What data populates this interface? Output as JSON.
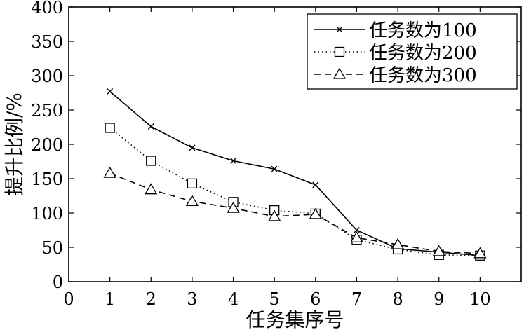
{
  "chart_data": {
    "type": "line",
    "title": "",
    "xlabel": "任务集序号",
    "ylabel": "提升比例/%",
    "xlim": [
      0,
      11
    ],
    "ylim": [
      0,
      400
    ],
    "xticks": [
      0,
      1,
      2,
      3,
      4,
      5,
      6,
      7,
      8,
      9,
      10
    ],
    "yticks": [
      0,
      50,
      100,
      150,
      200,
      250,
      300,
      350,
      400
    ],
    "grid": false,
    "legend_position": "top-right",
    "x": [
      1,
      2,
      3,
      4,
      5,
      6,
      7,
      8,
      9,
      10
    ],
    "series": [
      {
        "name": "任务数为100",
        "marker": "x",
        "line_style": "solid",
        "values": [
          277,
          226,
          195,
          176,
          164,
          141,
          75,
          48,
          43,
          38
        ]
      },
      {
        "name": "任务数为200",
        "marker": "square",
        "line_style": "dotted",
        "values": [
          224,
          176,
          143,
          116,
          104,
          99,
          61,
          47,
          39,
          38
        ]
      },
      {
        "name": "任务数为300",
        "marker": "triangle",
        "line_style": "dashed",
        "values": [
          158,
          134,
          117,
          107,
          95,
          98,
          64,
          54,
          44,
          41
        ]
      }
    ]
  }
}
